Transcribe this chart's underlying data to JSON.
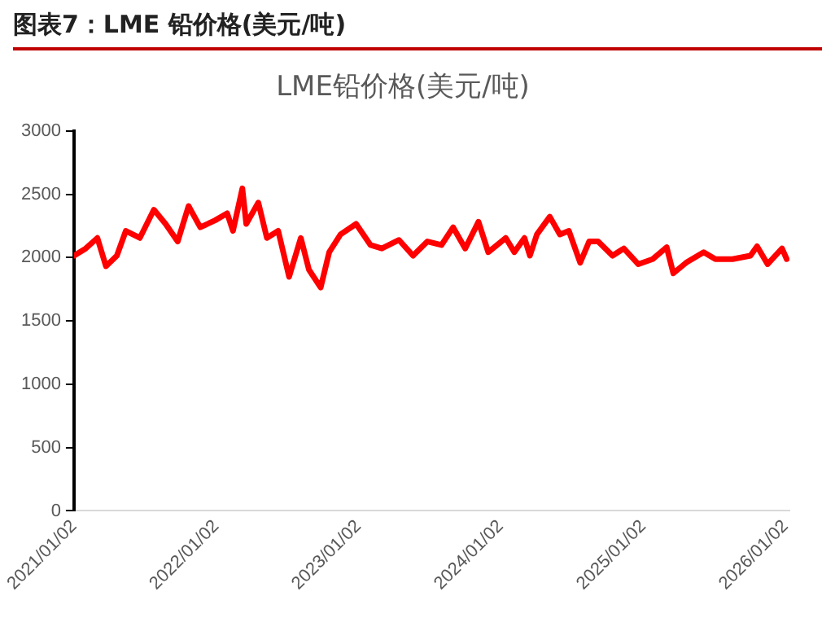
{
  "chart_data": {
    "type": "line",
    "title": "图表7：LME 铅价格(美元/吨)",
    "subtitle": "LME铅价格(美元/吨)",
    "x": [
      "2021-01-02",
      "2021-02-01",
      "2021-03-03",
      "2021-03-25",
      "2021-04-22",
      "2021-05-15",
      "2021-06-20",
      "2021-07-26",
      "2021-08-25",
      "2021-09-25",
      "2021-10-23",
      "2021-11-22",
      "2021-12-30",
      "2022-01-30",
      "2022-02-14",
      "2022-03-10",
      "2022-03-20",
      "2022-04-20",
      "2022-05-12",
      "2022-06-10",
      "2022-07-08",
      "2022-08-07",
      "2022-08-28",
      "2022-09-27",
      "2022-10-19",
      "2022-11-17",
      "2022-12-27",
      "2023-02-02",
      "2023-03-03",
      "2023-04-16",
      "2023-05-22",
      "2023-06-28",
      "2023-08-03",
      "2023-09-02",
      "2023-10-03",
      "2023-11-06",
      "2023-12-01",
      "2024-01-15",
      "2024-02-06",
      "2024-03-03",
      "2024-03-17",
      "2024-04-04",
      "2024-05-07",
      "2024-06-02",
      "2024-06-25",
      "2024-07-24",
      "2024-08-16",
      "2024-09-08",
      "2024-10-15",
      "2024-11-13",
      "2024-12-20",
      "2025-01-26",
      "2025-03-03",
      "2025-03-20",
      "2025-04-22",
      "2025-06-06",
      "2025-07-06",
      "2025-08-19",
      "2025-10-04",
      "2025-10-21",
      "2025-11-17",
      "2025-12-24",
      "2026-01-05"
    ],
    "series": [
      {
        "color": "#ff0000",
        "values": [
          2015,
          2072,
          2155,
          1932,
          2015,
          2211,
          2155,
          2378,
          2266,
          2127,
          2407,
          2239,
          2294,
          2350,
          2211,
          2546,
          2266,
          2434,
          2155,
          2211,
          1848,
          2155,
          1904,
          1764,
          2043,
          2183,
          2266,
          2099,
          2072,
          2139,
          2015,
          2127,
          2099,
          2239,
          2072,
          2283,
          2043,
          2155,
          2043,
          2155,
          2015,
          2183,
          2323,
          2183,
          2211,
          1960,
          2127,
          2127,
          2015,
          2072,
          1948,
          1988,
          2082,
          1876,
          1960,
          2043,
          1988,
          1988,
          2015,
          2089,
          1948,
          2072,
          1988
        ]
      }
    ],
    "xlim": [
      "2021-01-02",
      "2026-01-12"
    ],
    "xticks": [
      {
        "value": "2021-01-02",
        "label": "2021/01/02"
      },
      {
        "value": "2022-01-02",
        "label": "2022/01/02"
      },
      {
        "value": "2023-01-02",
        "label": "2023/01/02"
      },
      {
        "value": "2024-01-02",
        "label": "2024/01/02"
      },
      {
        "value": "2025-01-02",
        "label": "2025/01/02"
      },
      {
        "value": "2026-01-02",
        "label": "2026/01/02"
      }
    ],
    "ylim": [
      0,
      3000
    ],
    "yticks": [
      0,
      500,
      1000,
      1500,
      2000,
      2500,
      3000
    ],
    "grid": false,
    "legend": false,
    "marker": "none",
    "line_style": "solid"
  }
}
